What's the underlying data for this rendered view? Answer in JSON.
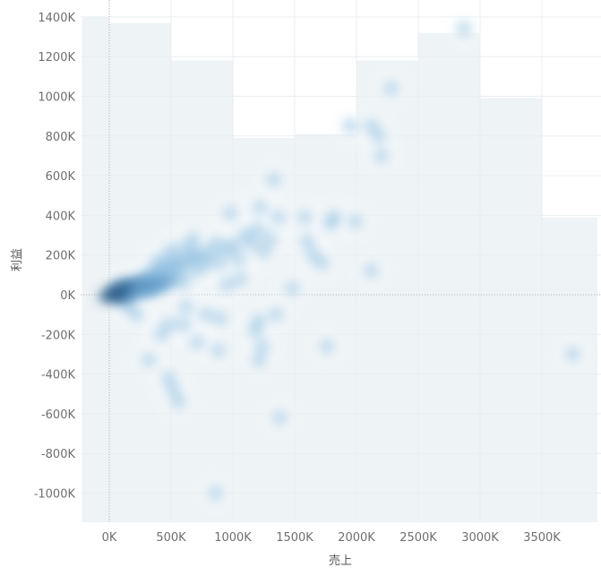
{
  "chart_data": {
    "type": "scatter",
    "xlabel": "売上",
    "ylabel": "利益",
    "xlim": [
      -220000,
      3950000
    ],
    "ylim": [
      -1160000,
      1460000
    ],
    "x_ticks": [
      {
        "value": 0,
        "label": "0K"
      },
      {
        "value": 500000,
        "label": "500K"
      },
      {
        "value": 1000000,
        "label": "1000K"
      },
      {
        "value": 1500000,
        "label": "1500K"
      },
      {
        "value": 2000000,
        "label": "2000K"
      },
      {
        "value": 2500000,
        "label": "2500K"
      },
      {
        "value": 3000000,
        "label": "3000K"
      },
      {
        "value": 3500000,
        "label": "3500K"
      }
    ],
    "y_ticks": [
      {
        "value": 1400000,
        "label": "1400K"
      },
      {
        "value": 1200000,
        "label": "1200K"
      },
      {
        "value": 1000000,
        "label": "1000K"
      },
      {
        "value": 800000,
        "label": "800K"
      },
      {
        "value": 600000,
        "label": "600K"
      },
      {
        "value": 400000,
        "label": "400K"
      },
      {
        "value": 200000,
        "label": "200K"
      },
      {
        "value": 0,
        "label": "0K"
      },
      {
        "value": -200000,
        "label": "-200K"
      },
      {
        "value": -400000,
        "label": "-400K"
      },
      {
        "value": -600000,
        "label": "-600K"
      },
      {
        "value": -800000,
        "label": "-800K"
      },
      {
        "value": -1000000,
        "label": "-1000K"
      }
    ],
    "background_bins": [
      {
        "x0": -220000,
        "x1": 0,
        "top": 1400000
      },
      {
        "x0": 0,
        "x1": 500000,
        "top": 1370000
      },
      {
        "x0": 500000,
        "x1": 1000000,
        "top": 1180000
      },
      {
        "x0": 1000000,
        "x1": 1500000,
        "top": 790000
      },
      {
        "x0": 1500000,
        "x1": 2000000,
        "top": 810000
      },
      {
        "x0": 2000000,
        "x1": 2500000,
        "top": 1180000
      },
      {
        "x0": 2500000,
        "x1": 3000000,
        "top": 1320000
      },
      {
        "x0": 3000000,
        "x1": 3500000,
        "top": 990000
      },
      {
        "x0": 3500000,
        "x1": 3950000,
        "top": 390000
      }
    ],
    "points": [
      {
        "x": 50000,
        "y": 10000
      },
      {
        "x": 80000,
        "y": 20000
      },
      {
        "x": 110000,
        "y": 25000
      },
      {
        "x": 130000,
        "y": 30000
      },
      {
        "x": 150000,
        "y": 35000
      },
      {
        "x": 170000,
        "y": 40000
      },
      {
        "x": 200000,
        "y": 45000
      },
      {
        "x": 230000,
        "y": 60000
      },
      {
        "x": 260000,
        "y": 70000
      },
      {
        "x": 290000,
        "y": 80000
      },
      {
        "x": 60000,
        "y": -10000
      },
      {
        "x": 90000,
        "y": -5000
      },
      {
        "x": 120000,
        "y": 5000
      },
      {
        "x": 140000,
        "y": -20000
      },
      {
        "x": 180000,
        "y": 15000
      },
      {
        "x": 210000,
        "y": 25000
      },
      {
        "x": 100000,
        "y": 45000
      },
      {
        "x": 70000,
        "y": 30000
      },
      {
        "x": 320000,
        "y": 90000
      },
      {
        "x": 350000,
        "y": 100000
      },
      {
        "x": 380000,
        "y": 110000
      },
      {
        "x": 410000,
        "y": 120000
      },
      {
        "x": 450000,
        "y": 130000
      },
      {
        "x": 480000,
        "y": 140000
      },
      {
        "x": 520000,
        "y": 150000
      },
      {
        "x": 560000,
        "y": 160000
      },
      {
        "x": 600000,
        "y": 170000
      },
      {
        "x": 650000,
        "y": 180000
      },
      {
        "x": 700000,
        "y": 190000
      },
      {
        "x": 750000,
        "y": 200000
      },
      {
        "x": 300000,
        "y": 20000
      },
      {
        "x": 360000,
        "y": 40000
      },
      {
        "x": 420000,
        "y": 60000
      },
      {
        "x": 480000,
        "y": 70000
      },
      {
        "x": 540000,
        "y": 90000
      },
      {
        "x": 600000,
        "y": 60000
      },
      {
        "x": 380000,
        "y": 160000
      },
      {
        "x": 460000,
        "y": 190000
      },
      {
        "x": 520000,
        "y": 230000
      },
      {
        "x": 560000,
        "y": 120000
      },
      {
        "x": 640000,
        "y": 240000
      },
      {
        "x": 700000,
        "y": 120000
      },
      {
        "x": 780000,
        "y": 150000
      },
      {
        "x": 820000,
        "y": 210000
      },
      {
        "x": 860000,
        "y": 260000
      },
      {
        "x": 900000,
        "y": 160000
      },
      {
        "x": 950000,
        "y": 230000
      },
      {
        "x": 1000000,
        "y": 250000
      },
      {
        "x": 1050000,
        "y": 180000
      },
      {
        "x": 1100000,
        "y": 300000
      },
      {
        "x": 1150000,
        "y": 260000
      },
      {
        "x": 1200000,
        "y": 330000
      },
      {
        "x": 1250000,
        "y": 220000
      },
      {
        "x": 1300000,
        "y": 280000
      },
      {
        "x": 680000,
        "y": 280000
      },
      {
        "x": 980000,
        "y": 410000
      },
      {
        "x": 1220000,
        "y": 440000
      },
      {
        "x": 1330000,
        "y": 580000
      },
      {
        "x": 1370000,
        "y": 390000
      },
      {
        "x": 1580000,
        "y": 390000
      },
      {
        "x": 1600000,
        "y": 270000
      },
      {
        "x": 1650000,
        "y": 200000
      },
      {
        "x": 1720000,
        "y": 160000
      },
      {
        "x": 1790000,
        "y": 360000
      },
      {
        "x": 1820000,
        "y": 390000
      },
      {
        "x": 1990000,
        "y": 370000
      },
      {
        "x": 2120000,
        "y": 120000
      },
      {
        "x": 1950000,
        "y": 850000
      },
      {
        "x": 2120000,
        "y": 850000
      },
      {
        "x": 2180000,
        "y": 800000
      },
      {
        "x": 2200000,
        "y": 700000
      },
      {
        "x": 2280000,
        "y": 1040000
      },
      {
        "x": 2870000,
        "y": 1340000
      },
      {
        "x": 3750000,
        "y": -300000
      },
      {
        "x": 1480000,
        "y": 30000
      },
      {
        "x": 1350000,
        "y": -100000
      },
      {
        "x": 1210000,
        "y": -130000
      },
      {
        "x": 1180000,
        "y": -180000
      },
      {
        "x": 1240000,
        "y": -260000
      },
      {
        "x": 1210000,
        "y": -330000
      },
      {
        "x": 1380000,
        "y": -620000
      },
      {
        "x": 1760000,
        "y": -260000
      },
      {
        "x": 880000,
        "y": -280000
      },
      {
        "x": 710000,
        "y": -240000
      },
      {
        "x": 320000,
        "y": -330000
      },
      {
        "x": 480000,
        "y": -420000
      },
      {
        "x": 520000,
        "y": -480000
      },
      {
        "x": 560000,
        "y": -540000
      },
      {
        "x": 420000,
        "y": -200000
      },
      {
        "x": 900000,
        "y": -120000
      },
      {
        "x": 780000,
        "y": -100000
      },
      {
        "x": 620000,
        "y": -60000
      },
      {
        "x": 860000,
        "y": -1000000
      },
      {
        "x": 220000,
        "y": -100000
      },
      {
        "x": 150000,
        "y": -60000
      },
      {
        "x": 480000,
        "y": -150000
      },
      {
        "x": 600000,
        "y": -150000
      },
      {
        "x": 950000,
        "y": 50000
      },
      {
        "x": 1060000,
        "y": 80000
      }
    ]
  }
}
